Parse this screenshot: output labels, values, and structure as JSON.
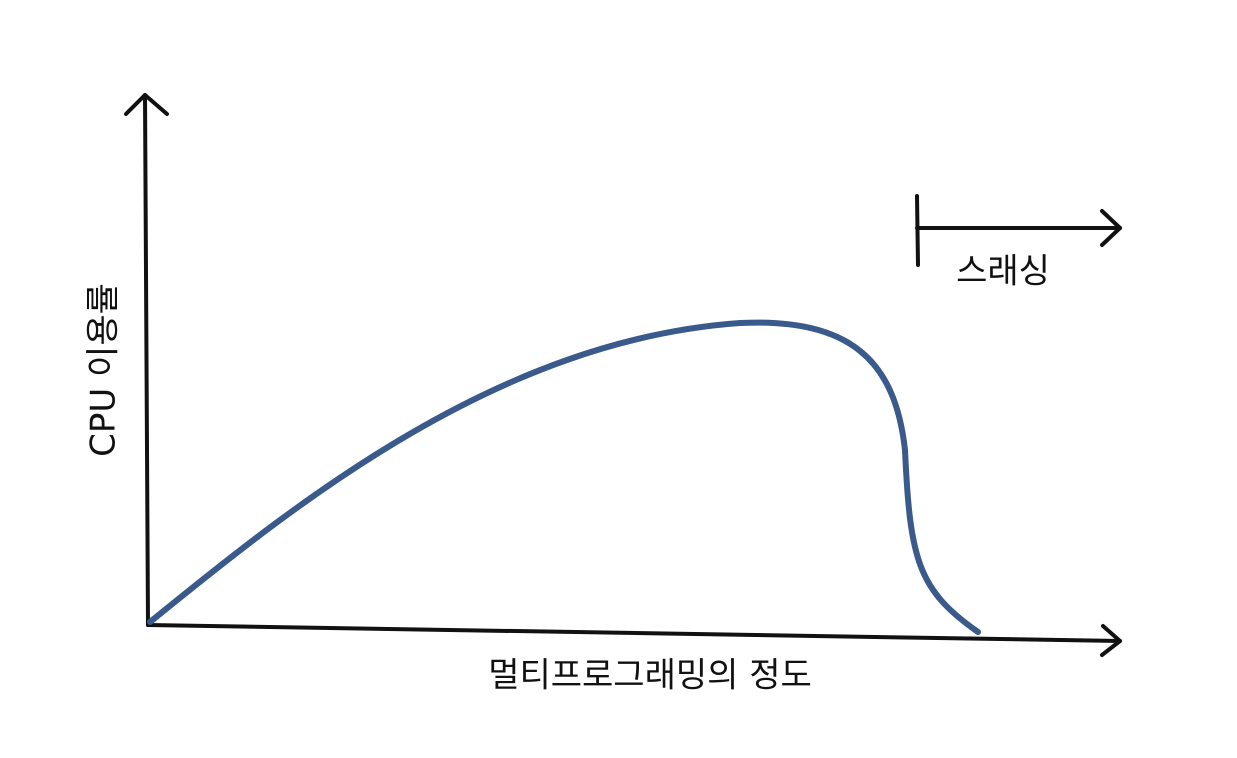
{
  "y_axis_label": "CPU 이용률",
  "x_axis_label": "멀티프로그래밍의 정도",
  "annotation": "스래싱"
}
